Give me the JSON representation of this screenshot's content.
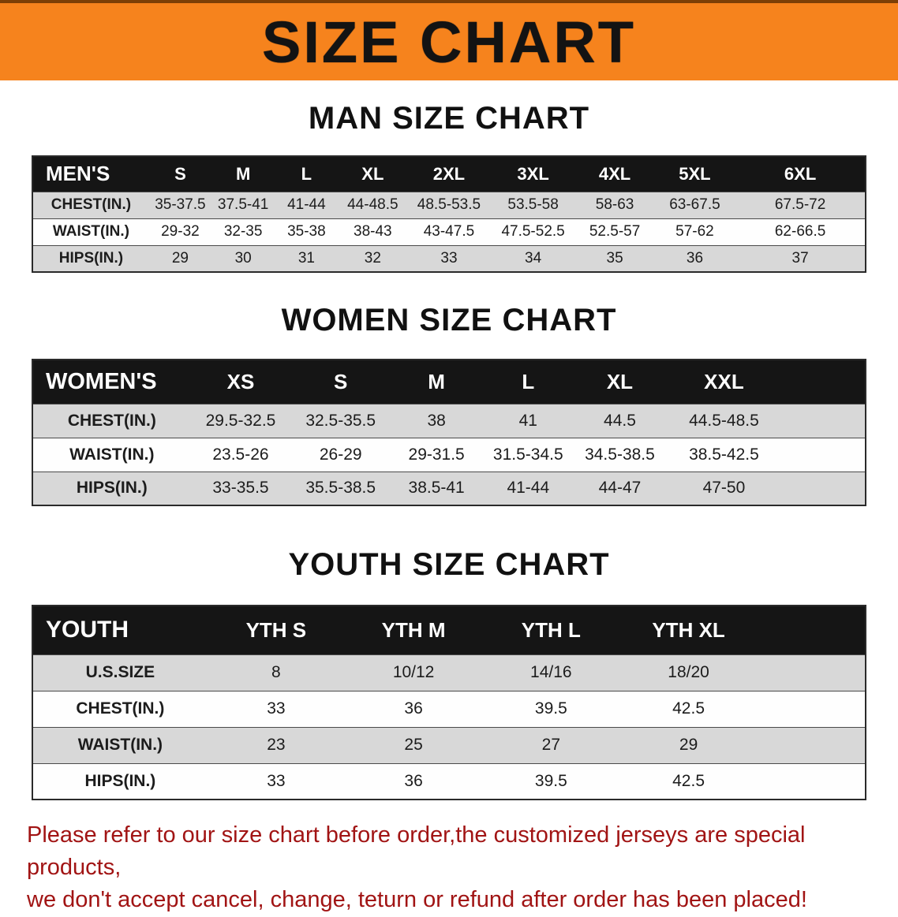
{
  "banner": {
    "title": "SIZE CHART"
  },
  "colors": {
    "banner_bg": "#f6831d",
    "table_header_bg": "#151515",
    "table_header_text": "#ffffff",
    "stripe_row_bg": "#d8d8d8",
    "disclaimer_text": "#a11414"
  },
  "chart_data": [
    {
      "type": "table",
      "title": "MAN SIZE CHART",
      "header": [
        "MEN'S",
        "S",
        "M",
        "L",
        "XL",
        "2XL",
        "3XL",
        "4XL",
        "5XL",
        "6XL"
      ],
      "rows": [
        [
          "CHEST(IN.)",
          "35-37.5",
          "37.5-41",
          "41-44",
          "44-48.5",
          "48.5-53.5",
          "53.5-58",
          "58-63",
          "63-67.5",
          "67.5-72"
        ],
        [
          "WAIST(IN.)",
          "29-32",
          "32-35",
          "35-38",
          "38-43",
          "43-47.5",
          "47.5-52.5",
          "52.5-57",
          "57-62",
          "62-66.5"
        ],
        [
          "HIPS(IN.)",
          "29",
          "30",
          "31",
          "32",
          "33",
          "34",
          "35",
          "36",
          "37"
        ]
      ]
    },
    {
      "type": "table",
      "title": "WOMEN SIZE CHART",
      "header": [
        "WOMEN'S",
        "XS",
        "S",
        "M",
        "L",
        "XL",
        "XXL"
      ],
      "rows": [
        [
          "CHEST(IN.)",
          "29.5-32.5",
          "32.5-35.5",
          "38",
          "41",
          "44.5",
          "44.5-48.5"
        ],
        [
          "WAIST(IN.)",
          "23.5-26",
          "26-29",
          "29-31.5",
          "31.5-34.5",
          "34.5-38.5",
          "38.5-42.5"
        ],
        [
          "HIPS(IN.)",
          "33-35.5",
          "35.5-38.5",
          "38.5-41",
          "41-44",
          "44-47",
          "47-50"
        ]
      ]
    },
    {
      "type": "table",
      "title": "YOUTH SIZE CHART",
      "header": [
        "YOUTH",
        "YTH S",
        "YTH M",
        "YTH L",
        "YTH XL"
      ],
      "rows": [
        [
          "U.S.SIZE",
          "8",
          "10/12",
          "14/16",
          "18/20"
        ],
        [
          "CHEST(IN.)",
          "33",
          "36",
          "39.5",
          "42.5"
        ],
        [
          "WAIST(IN.)",
          "23",
          "25",
          "27",
          "29"
        ],
        [
          "HIPS(IN.)",
          "33",
          "36",
          "39.5",
          "42.5"
        ]
      ]
    }
  ],
  "disclaimer": {
    "line1": "Please refer to our size chart before order,the customized jerseys are special products,",
    "line2": "we don't accept cancel, change, teturn or refund after order has been placed!"
  }
}
